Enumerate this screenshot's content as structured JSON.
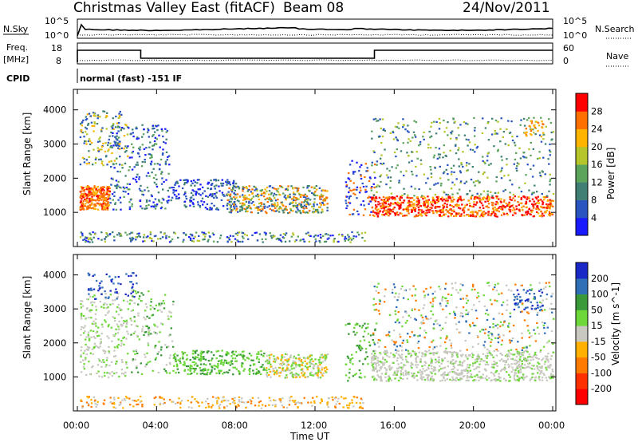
{
  "header": {
    "station": "Christmas Valley East (fitACF)",
    "beam": "Beam 08",
    "date": "24/Nov/2011"
  },
  "strip": {
    "nsky_label": "N.Sky",
    "nsearch_label": "N.Search",
    "nsky_ticks": [
      "10^5",
      "10^0"
    ],
    "nsearch_ticks": [
      "10^5",
      "10^0"
    ],
    "freq_label_1": "Freq.",
    "freq_label_2": "[MHz]",
    "freq_ticks": [
      "18",
      "8"
    ],
    "nave_label": "Nave",
    "nave_ticks": [
      "60",
      "0"
    ],
    "cpid_label": "CPID",
    "cpid_value": "normal (fast) -151 IF"
  },
  "chart_data": [
    {
      "type": "heatmap",
      "name": "power",
      "ylabel": "Slant Range [km]",
      "y_ticks": [
        "1000",
        "2000",
        "3000",
        "4000"
      ],
      "colorbar_label": "Power [dB]",
      "colorbar_ticks": [
        "4",
        "8",
        "12",
        "16",
        "20",
        "24",
        "28"
      ],
      "colorbar_colors": [
        "#1a1aff",
        "#2a54c0",
        "#3f7f74",
        "#5ca45c",
        "#b5c52a",
        "#ffb400",
        "#ff7000",
        "#ff0000"
      ]
    },
    {
      "type": "heatmap",
      "name": "velocity",
      "ylabel": "Slant Range [km]",
      "y_ticks": [
        "1000",
        "2000",
        "3000",
        "4000"
      ],
      "colorbar_label": "Velocity [m s^-1]",
      "colorbar_ticks": [
        "200",
        "100",
        "50",
        "15",
        "-15",
        "-50",
        "-100",
        "-200"
      ],
      "colorbar_colors": [
        "#1a28c8",
        "#2f6fb8",
        "#3a9a3a",
        "#6ed83a",
        "#c8c8c0",
        "#ffb000",
        "#ff7a00",
        "#ff3000",
        "#ff0000"
      ]
    }
  ],
  "x_axis": {
    "label": "Time UT",
    "ticks": [
      "00:00",
      "04:00",
      "08:00",
      "12:00",
      "16:00",
      "20:00",
      "00:00"
    ]
  }
}
